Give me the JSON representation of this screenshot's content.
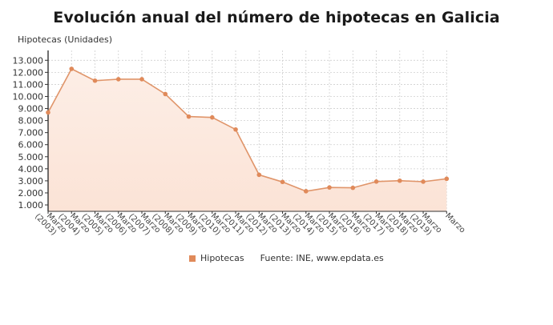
{
  "title": "Evolución anual del número de hipotecas en Galicia",
  "legend": {
    "series_label": "Hipotecas",
    "source": "Fuente: INE, www.epdata.es"
  },
  "colors": {
    "line": "#e0956a",
    "marker": "#e08a5a",
    "fill_top": "#fdeee6",
    "fill_bottom": "#fbe3d6",
    "grid": "#cfcfcf",
    "axis": "#333333"
  },
  "chart_data": {
    "type": "area",
    "title": "Evolución anual del número de hipotecas en Galicia",
    "xlabel": "",
    "ylabel": "Hipotecas (Unidades)",
    "ylim": [
      0,
      13800
    ],
    "yticks": [
      1000,
      2000,
      3000,
      4000,
      5000,
      6000,
      7000,
      8000,
      9000,
      10000,
      11000,
      12000,
      13000
    ],
    "ytick_labels": [
      "1.000",
      "2.000",
      "3.000",
      "4.000",
      "5.000",
      "6.000",
      "7.000",
      "8.000",
      "9.000",
      "10.000",
      "11.000",
      "12.000",
      "13.000"
    ],
    "grid": true,
    "legend_position": "bottom",
    "categories": [
      [
        "Marzo",
        "(2003)"
      ],
      [
        "Marzo",
        "(2004)"
      ],
      [
        "Marzo",
        "(2005)"
      ],
      [
        "Marzo",
        "(2006)"
      ],
      [
        "Marzo",
        "(2007)"
      ],
      [
        "Marzo",
        "(2008)"
      ],
      [
        "Marzo",
        "(2009)"
      ],
      [
        "Marzo",
        "(2010)"
      ],
      [
        "Marzo",
        "(2011)"
      ],
      [
        "Marzo",
        "(2012)"
      ],
      [
        "Marzo",
        "(2013)"
      ],
      [
        "Marzo",
        "(2014)"
      ],
      [
        "Marzo",
        "(2015)"
      ],
      [
        "Marzo",
        "(2016)"
      ],
      [
        "Marzo",
        "(2017)"
      ],
      [
        "Marzo",
        "(2018)"
      ],
      [
        "Marzo",
        "(2019)"
      ],
      [
        "Marzo",
        ""
      ]
    ],
    "series": [
      {
        "name": "Hipotecas",
        "values": [
          8670,
          12290,
          11310,
          11430,
          11430,
          10200,
          8330,
          8260,
          7260,
          3500,
          2910,
          2140,
          2450,
          2420,
          2940,
          3010,
          2930,
          3170
        ]
      }
    ]
  }
}
